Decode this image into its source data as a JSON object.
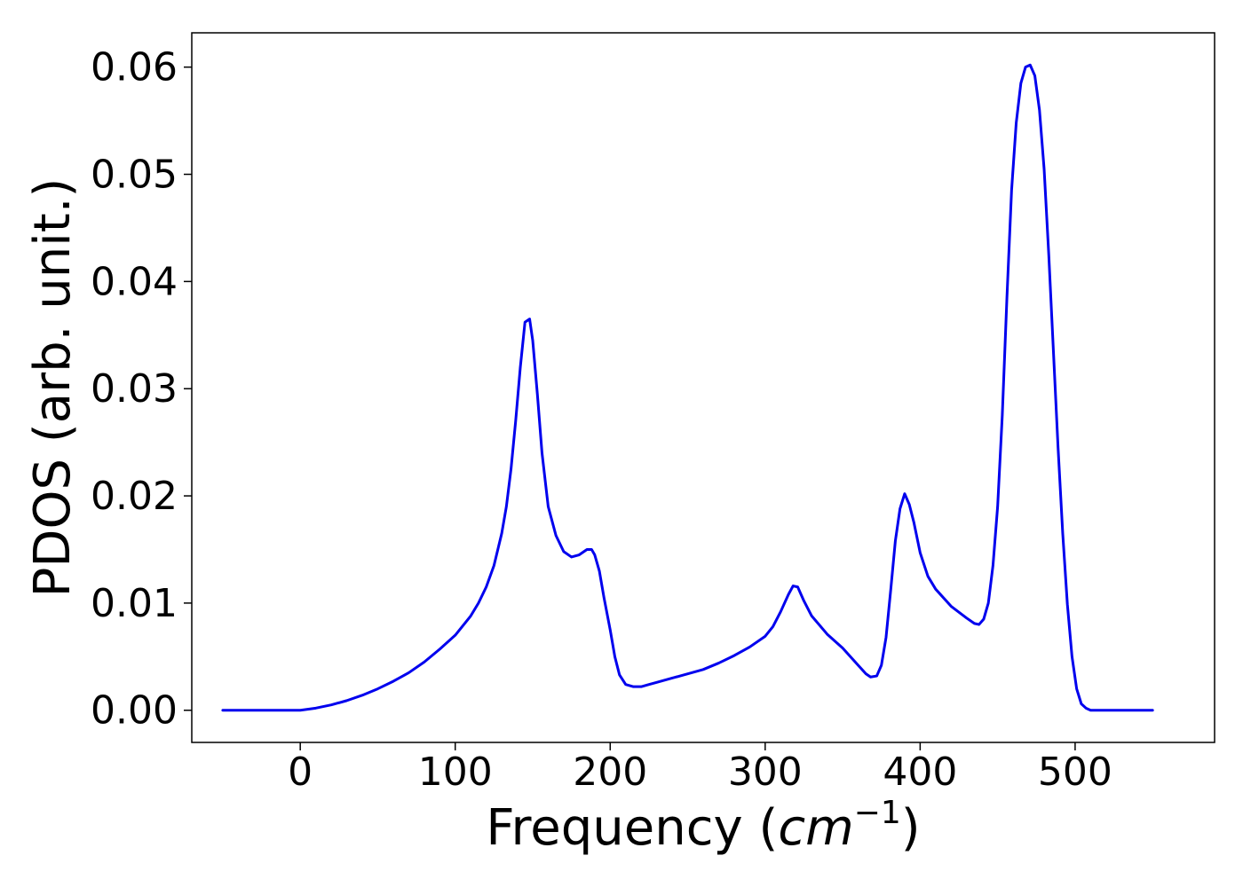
{
  "chart_data": {
    "type": "line",
    "title": "",
    "xlabel_main": "Frequency (",
    "xlabel_unit": "cm",
    "xlabel_exponent": "−1",
    "xlabel_close": ")",
    "ylabel": "PDOS (arb. unit.)",
    "xlim": [
      -70,
      590
    ],
    "ylim": [
      -0.003,
      0.0632
    ],
    "x_ticks": [
      0,
      100,
      200,
      300,
      400,
      500
    ],
    "x_tick_labels": [
      "0",
      "100",
      "200",
      "300",
      "400",
      "500"
    ],
    "y_ticks": [
      0.0,
      0.01,
      0.02,
      0.03,
      0.04,
      0.05,
      0.06
    ],
    "y_tick_labels": [
      "0.00",
      "0.01",
      "0.02",
      "0.03",
      "0.04",
      "0.05",
      "0.06"
    ],
    "grid": false,
    "legend": "none",
    "line_color": "#0000ee",
    "series": [
      {
        "x": [
          -50,
          -40,
          -30,
          -20,
          -10,
          0,
          10,
          20,
          30,
          40,
          50,
          60,
          70,
          80,
          90,
          100,
          110,
          115,
          120,
          125,
          130,
          133,
          136,
          139,
          142,
          145,
          148,
          150,
          153,
          156,
          160,
          165,
          170,
          175,
          180,
          185,
          188,
          190,
          193,
          196,
          200,
          203,
          206,
          210,
          215,
          220,
          225,
          230,
          240,
          250,
          260,
          270,
          280,
          290,
          300,
          305,
          310,
          315,
          318,
          321,
          325,
          330,
          340,
          350,
          360,
          365,
          368,
          372,
          375,
          378,
          381,
          384,
          387,
          390,
          393,
          396,
          400,
          405,
          410,
          420,
          430,
          435,
          438,
          441,
          444,
          447,
          450,
          453,
          456,
          459,
          462,
          465,
          468,
          471,
          474,
          477,
          480,
          483,
          486,
          489,
          492,
          495,
          498,
          501,
          504,
          507,
          510,
          515,
          520,
          530,
          540,
          550
        ],
        "y": [
          0.0,
          0.0,
          0.0,
          0.0,
          0.0,
          0.0,
          0.0002,
          0.0005,
          0.0009,
          0.0014,
          0.002,
          0.0027,
          0.0035,
          0.0045,
          0.0057,
          0.007,
          0.0088,
          0.01,
          0.0115,
          0.0135,
          0.0165,
          0.019,
          0.0225,
          0.027,
          0.032,
          0.0362,
          0.0365,
          0.0345,
          0.0295,
          0.024,
          0.019,
          0.0163,
          0.0148,
          0.0143,
          0.0145,
          0.015,
          0.015,
          0.0145,
          0.013,
          0.0105,
          0.0075,
          0.005,
          0.0033,
          0.0024,
          0.0022,
          0.0022,
          0.0024,
          0.0026,
          0.003,
          0.0034,
          0.0038,
          0.0044,
          0.0051,
          0.0059,
          0.0069,
          0.0078,
          0.0092,
          0.0108,
          0.0116,
          0.0115,
          0.0102,
          0.0088,
          0.0071,
          0.0058,
          0.0042,
          0.0034,
          0.0031,
          0.0032,
          0.0042,
          0.0068,
          0.0112,
          0.0158,
          0.0188,
          0.0202,
          0.0192,
          0.0175,
          0.0147,
          0.0125,
          0.0113,
          0.0097,
          0.0086,
          0.0081,
          0.008,
          0.0085,
          0.01,
          0.0135,
          0.019,
          0.0275,
          0.0385,
          0.0485,
          0.0548,
          0.0585,
          0.06,
          0.0602,
          0.0592,
          0.056,
          0.0505,
          0.0425,
          0.0335,
          0.0245,
          0.0165,
          0.0099,
          0.005,
          0.002,
          0.0006,
          0.0002,
          0.0,
          0.0,
          0.0,
          0.0,
          0.0,
          0.0
        ]
      }
    ]
  }
}
